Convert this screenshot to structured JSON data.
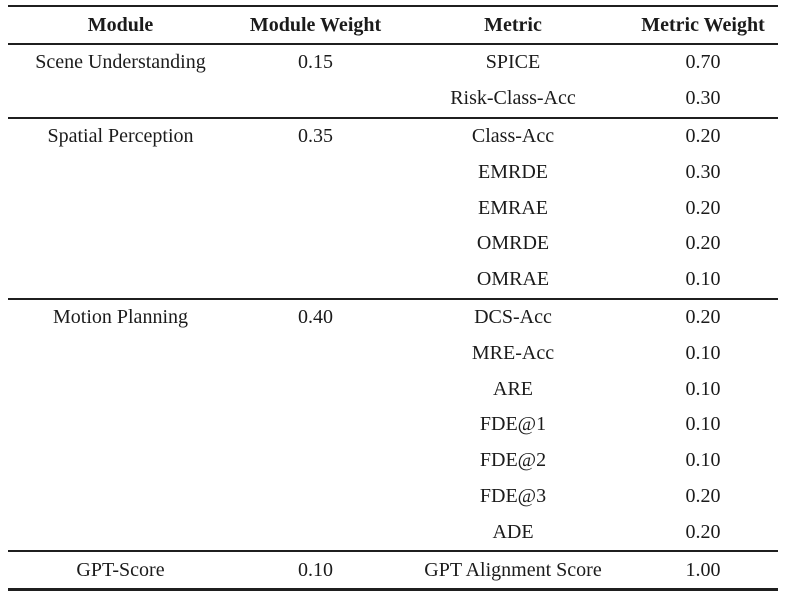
{
  "table": {
    "headers": [
      "Module",
      "Module Weight",
      "Metric",
      "Metric Weight"
    ],
    "sections": [
      {
        "module": "Scene Understanding",
        "module_weight": "0.15",
        "metrics": [
          {
            "name": "SPICE",
            "weight": "0.70"
          },
          {
            "name": "Risk-Class-Acc",
            "weight": "0.30"
          }
        ]
      },
      {
        "module": "Spatial Perception",
        "module_weight": "0.35",
        "metrics": [
          {
            "name": "Class-Acc",
            "weight": "0.20"
          },
          {
            "name": "EMRDE",
            "weight": "0.30"
          },
          {
            "name": "EMRAE",
            "weight": "0.20"
          },
          {
            "name": "OMRDE",
            "weight": "0.20"
          },
          {
            "name": "OMRAE",
            "weight": "0.10"
          }
        ]
      },
      {
        "module": "Motion Planning",
        "module_weight": "0.40",
        "metrics": [
          {
            "name": "DCS-Acc",
            "weight": "0.20"
          },
          {
            "name": "MRE-Acc",
            "weight": "0.10"
          },
          {
            "name": "ARE",
            "weight": "0.10"
          },
          {
            "name": "FDE@1",
            "weight": "0.10"
          },
          {
            "name": "FDE@2",
            "weight": "0.10"
          },
          {
            "name": "FDE@3",
            "weight": "0.20"
          },
          {
            "name": "ADE",
            "weight": "0.20"
          }
        ]
      },
      {
        "module": "GPT-Score",
        "module_weight": "0.10",
        "metrics": [
          {
            "name": "GPT Alignment Score",
            "weight": "1.00"
          }
        ]
      }
    ]
  },
  "colors": {
    "text": "#1b1b1b",
    "rule": "#1f1f1f",
    "background": "#ffffff"
  }
}
